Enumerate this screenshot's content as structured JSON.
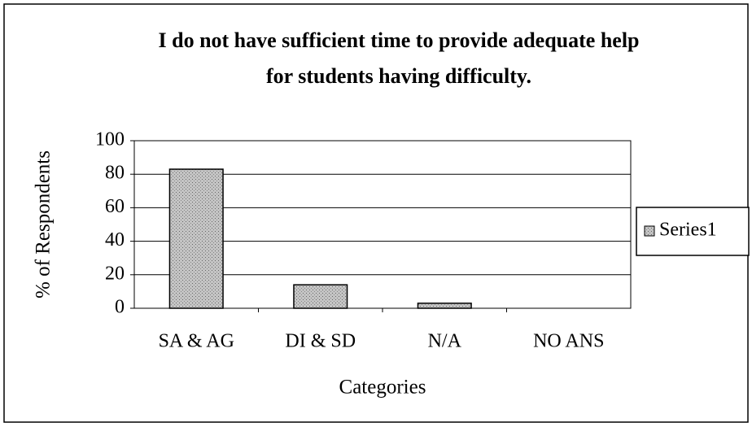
{
  "chart_data": {
    "type": "bar",
    "title": [
      "I do not have sufficient time to provide adequate help",
      "for students having difficulty."
    ],
    "x_label": "Categories",
    "y_label": "% of Respondents",
    "categories": [
      "SA & AG",
      "DI & SD",
      "N/A",
      "NO ANS"
    ],
    "series": [
      {
        "name": "Series1",
        "color": "#c4c4c4",
        "values": [
          83,
          14,
          3,
          0
        ]
      }
    ],
    "ylim": [
      0,
      100
    ],
    "yticks": [
      0,
      20,
      40,
      60,
      80,
      100
    ],
    "grid": true,
    "legend": "right"
  }
}
